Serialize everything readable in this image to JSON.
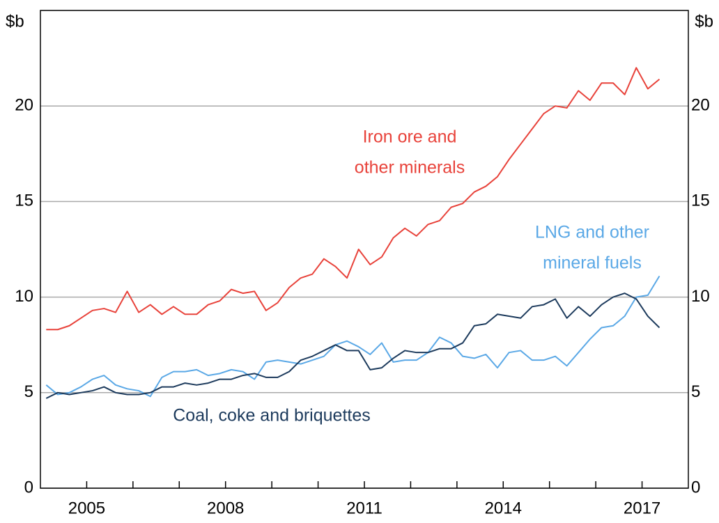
{
  "chart_data": {
    "type": "line",
    "ylabel": "$b",
    "y2label": "$b",
    "xlim": [
      2004,
      2018
    ],
    "xticks": [
      2005,
      2008,
      2011,
      2014,
      2017
    ],
    "xminor_ticks": [
      2005,
      2006,
      2007,
      2008,
      2009,
      2010,
      2011,
      2012,
      2013,
      2014,
      2015,
      2016,
      2017
    ],
    "ylim": [
      0,
      25
    ],
    "yticks": [
      0,
      5,
      10,
      15,
      20
    ],
    "y2lim": [
      0,
      25
    ],
    "y2ticks": [
      0,
      5,
      10,
      15,
      20
    ],
    "grid": true,
    "x": [
      2004.125,
      2004.375,
      2004.625,
      2004.875,
      2005.125,
      2005.375,
      2005.625,
      2005.875,
      2006.125,
      2006.375,
      2006.625,
      2006.875,
      2007.125,
      2007.375,
      2007.625,
      2007.875,
      2008.125,
      2008.375,
      2008.625,
      2008.875,
      2009.125,
      2009.375,
      2009.625,
      2009.875,
      2010.125,
      2010.375,
      2010.625,
      2010.875,
      2011.125,
      2011.375,
      2011.625,
      2011.875,
      2012.125,
      2012.375,
      2012.625,
      2012.875,
      2013.125,
      2013.375,
      2013.625,
      2013.875,
      2014.125,
      2014.375,
      2014.625,
      2014.875,
      2015.125,
      2015.375,
      2015.625,
      2015.875,
      2016.125,
      2016.375,
      2016.625,
      2016.875,
      2017.125,
      2017.375
    ],
    "series": [
      {
        "name": [
          "Iron ore and",
          "other minerals"
        ],
        "color": "#e8423a",
        "values": [
          8.3,
          8.3,
          8.5,
          8.9,
          9.3,
          9.4,
          9.2,
          10.3,
          9.2,
          9.6,
          9.1,
          9.5,
          9.1,
          9.1,
          9.6,
          9.8,
          10.4,
          10.2,
          10.3,
          9.3,
          9.7,
          10.5,
          11.0,
          11.2,
          12.0,
          11.6,
          11.0,
          12.5,
          11.7,
          12.1,
          13.1,
          13.6,
          13.2,
          13.8,
          14.0,
          14.7,
          14.9,
          15.5,
          15.8,
          16.3,
          17.2,
          18.0,
          18.8,
          19.6,
          20.0,
          19.9,
          20.8,
          20.3,
          21.2,
          21.2,
          20.6,
          22.0,
          20.9,
          21.4
        ]
      },
      {
        "name": [
          "LNG and other",
          "mineral fuels"
        ],
        "color": "#5aa8e6",
        "values": [
          5.4,
          4.9,
          5.0,
          5.3,
          5.7,
          5.9,
          5.4,
          5.2,
          5.1,
          4.8,
          5.8,
          6.1,
          6.1,
          6.2,
          5.9,
          6.0,
          6.2,
          6.1,
          5.7,
          6.6,
          6.7,
          6.6,
          6.5,
          6.7,
          6.9,
          7.5,
          7.7,
          7.4,
          7.0,
          7.6,
          6.6,
          6.7,
          6.7,
          7.1,
          7.9,
          7.6,
          6.9,
          6.8,
          7.0,
          6.3,
          7.1,
          7.2,
          6.7,
          6.7,
          6.9,
          6.4,
          7.1,
          7.8,
          8.4,
          8.5,
          9.0,
          10.0,
          10.1,
          11.1
        ]
      },
      {
        "name": [
          "Coal, coke and briquettes"
        ],
        "color": "#1c3a5c",
        "values": [
          4.7,
          5.0,
          4.9,
          5.0,
          5.1,
          5.3,
          5.0,
          4.9,
          4.9,
          5.0,
          5.3,
          5.3,
          5.5,
          5.4,
          5.5,
          5.7,
          5.7,
          5.9,
          6.0,
          5.8,
          5.8,
          6.1,
          6.7,
          6.9,
          7.2,
          7.5,
          7.2,
          7.2,
          6.2,
          6.3,
          6.8,
          7.2,
          7.1,
          7.1,
          7.3,
          7.3,
          7.6,
          8.5,
          8.6,
          9.1,
          9.0,
          8.9,
          9.5,
          9.6,
          9.9,
          8.9,
          9.5,
          9.0,
          9.6,
          10.0,
          10.2,
          9.9,
          9.0,
          8.4
        ]
      }
    ]
  }
}
